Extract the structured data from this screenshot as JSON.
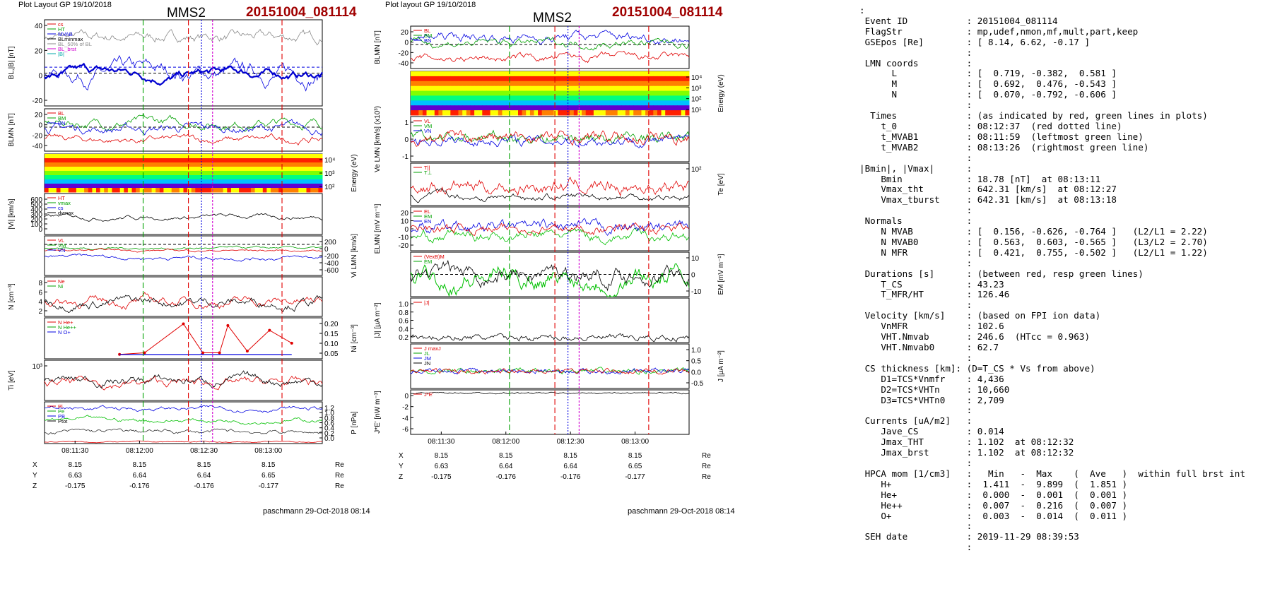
{
  "left": {
    "header": {
      "layout": "Plot Layout GP 19/10/2018",
      "sc": "MMS2",
      "event": "20151004_081114"
    },
    "footer": "paschmann 29-Oct-2018 08:14",
    "time_ticks": [
      "08:11:30",
      "08:12:00",
      "08:12:30",
      "08:13:00"
    ],
    "orbit": {
      "rows": [
        {
          "label": "X",
          "values": [
            "8.15",
            "8.15",
            "8.15",
            "8.15"
          ],
          "unit": "Re"
        },
        {
          "label": "Y",
          "values": [
            "6.63",
            "6.64",
            "6.64",
            "6.65"
          ],
          "unit": "Re"
        },
        {
          "label": "Z",
          "values": [
            "-0.175",
            "-0.176",
            "-0.176",
            "-0.177"
          ],
          "unit": "Re"
        }
      ]
    },
    "panels": [
      {
        "id": "bl",
        "ylabel": "BL,|B| [nT]",
        "ticks": [
          "40",
          "20",
          "0",
          "-20"
        ],
        "legend": [
          "cs",
          "HT",
          "MVAB",
          "BLminmax",
          "BL_50% of BL",
          "BL_brst",
          "|B|"
        ]
      },
      {
        "id": "blmn",
        "ylabel": "BLMN [nT]",
        "ticks": [
          "20",
          "0",
          "-20",
          "-40"
        ],
        "legend": [
          "BL",
          "BM",
          "BN"
        ]
      },
      {
        "id": "spec",
        "rlabel": "Energy (eV)",
        "rticks": [
          "10⁴",
          "10³",
          "10²"
        ]
      },
      {
        "id": "vi",
        "ylabel": "|Vi| [km/s]",
        "ticks": [
          "600",
          "500",
          "400",
          "300",
          "200",
          "100",
          "0"
        ],
        "legend": [
          "HT",
          "vmax",
          "cs",
          "dvmax"
        ]
      },
      {
        "id": "vilmn",
        "rlabel": "Vi LMN [km/s]",
        "rticks": [
          "200",
          "0",
          "-200",
          "-400",
          "-600"
        ],
        "legend": [
          "VL",
          "VM",
          "VN"
        ]
      },
      {
        "id": "n",
        "ylabel": "N [cm⁻³]",
        "ticks": [
          "8",
          "6",
          "4",
          "2"
        ],
        "legend": [
          "Ne",
          "Ni"
        ]
      },
      {
        "id": "nminor",
        "rlabel": "Ni [cm⁻³]",
        "rticks": [
          "0.20",
          "0.15",
          "0.10",
          "0.05"
        ],
        "legend": [
          "N He+",
          "N He++",
          "N O+"
        ]
      },
      {
        "id": "ti",
        "ylabel": "Ti [eV]",
        "ticks": [
          "10³"
        ]
      },
      {
        "id": "p",
        "rlabel": "P [nPa]",
        "rticks": [
          "1.2",
          "1.0",
          "0.8",
          "0.6",
          "0.4",
          "0.2",
          "0.0"
        ],
        "legend": [
          "Pi",
          "Pe",
          "PB",
          "Ptot"
        ]
      }
    ]
  },
  "middle": {
    "header": {
      "layout": "Plot layout GP 19/10/2018",
      "sc": "MMS2",
      "event": "20151004_081114"
    },
    "footer": "paschmann 29-Oct-2018 08:14",
    "time_ticks": [
      "08:11:30",
      "08:12:00",
      "08:12:30",
      "08:13:00"
    ],
    "orbit": {
      "rows": [
        {
          "label": "X",
          "values": [
            "8.15",
            "8.15",
            "8.15",
            "8.15"
          ],
          "unit": "Re"
        },
        {
          "label": "Y",
          "values": [
            "6.63",
            "6.64",
            "6.64",
            "6.65"
          ],
          "unit": "Re"
        },
        {
          "label": "Z",
          "values": [
            "-0.175",
            "-0.176",
            "-0.176",
            "-0.177"
          ],
          "unit": "Re"
        }
      ]
    },
    "panels": [
      {
        "id": "blmn",
        "ylabel": "BLMN [nT]",
        "ticks": [
          "20",
          "0",
          "-20",
          "-40"
        ],
        "legend": [
          "BL",
          "BM",
          "BN"
        ]
      },
      {
        "id": "spec",
        "rlabel": "Energy (eV)",
        "rticks": [
          "10⁴",
          "10³",
          "10²",
          "10¹"
        ]
      },
      {
        "id": "ve",
        "ylabel": "Ve LMN [km/s] (x10³)",
        "ticks": [
          "1",
          "0",
          "-1"
        ],
        "legend": [
          "VL",
          "VM",
          "VN"
        ]
      },
      {
        "id": "te",
        "rlabel": "Te [eV]",
        "rticks": [
          "10²"
        ],
        "legend": [
          "T||",
          "T⊥"
        ]
      },
      {
        "id": "e",
        "ylabel": "ELMN [mV m⁻¹]",
        "ticks": [
          "20",
          "10",
          "0",
          "-10",
          "-20"
        ],
        "legend": [
          "EL",
          "EM",
          "EN"
        ]
      },
      {
        "id": "em",
        "rlabel": "EM [mV m⁻¹]",
        "rticks": [
          "10",
          "0",
          "-10"
        ],
        "legend": [
          "(VexB)M",
          "EM"
        ]
      },
      {
        "id": "jmag",
        "ylabel": "|J| [μA m⁻²]",
        "ticks": [
          "1.0",
          "0.8",
          "0.6",
          "0.4",
          "0.2"
        ],
        "legend": [
          "|J|"
        ]
      },
      {
        "id": "j",
        "rlabel": "J [μA m⁻²]",
        "rticks": [
          "1.0",
          "0.5",
          "0.0",
          "-0.5"
        ],
        "legend": [
          "J maxJ",
          "JL",
          "JM",
          "JN"
        ]
      },
      {
        "id": "jdote",
        "ylabel": "J*E' [nW m⁻³]",
        "ticks": [
          "0",
          "-2",
          "-4",
          "-6"
        ],
        "legend": [
          "J*E'"
        ]
      }
    ]
  },
  "info": {
    "lines": [
      ":",
      " Event ID           : 20151004_081114",
      " FlagStr            : mp,udef,nmon,mf,mult,part,keep",
      " GSEpos [Re]        : [ 8.14, 6.62, -0.17 ]",
      "                    :",
      " LMN coords         :",
      "      L             : [  0.719, -0.382,  0.581 ]",
      "      M             : [  0.692,  0.476, -0.543 ]",
      "      N             : [  0.070, -0.792, -0.606 ]",
      "                    :",
      "  Times             : (as indicated by red, green lines in plots)",
      "    t_0             : 08:12:37  (red dotted line)",
      "    t_MVAB1         : 08:11:59  (leftmost green line)",
      "    t_MVAB2         : 08:13:26  (rightmost green line)",
      "                    :",
      "|Bmin|, |Vmax|      :",
      "    Bmin            : 18.78 [nT]  at 08:13:11",
      "    Vmax_tht        : 642.31 [km/s]  at 08:12:27",
      "    Vmax_tburst     : 642.31 [km/s]  at 08:13:18",
      "                    :",
      " Normals            :",
      "    N MVAB          : [  0.156, -0.626, -0.764 ]   (L2/L1 = 2.22)",
      "    N MVAB0         : [  0.563,  0.603, -0.565 ]   (L3/L2 = 2.70)",
      "    N MFR           : [  0.421,  0.755, -0.502 ]   (L2/L1 = 1.22)",
      "                    :",
      " Durations [s]      : (between red, resp green lines)",
      "    T_CS            : 43.23",
      "    T_MFR/HT        : 126.46",
      "                    :",
      " Velocity [km/s]    : (based on FPI ion data)",
      "    VnMFR           : 102.6",
      "    VHT.Nmvab       : 246.6  (HTcc = 0.963)",
      "    VHT.Nmvab0      : 62.7",
      "                    :",
      " CS thickness [km]: (D=T_CS * Vs from above)",
      "    D1=TCS*Vnmfr    : 4,436",
      "    D2=TCS*VHTn     : 10,660",
      "    D3=TCS*VHTn0    : 2,709",
      "                    :",
      " Currents [uA/m2]   :",
      "    Jave_CS         : 0.014",
      "    Jmax_THT        : 1.102  at 08:12:32",
      "    Jmax_brst       : 1.102  at 08:12:32",
      "                    :",
      " HPCA mom [1/cm3]   :   Min   -  Max    (  Ave   )  within full brst int",
      "    H+              :  1.411  -  9.899  (  1.851 )",
      "    He+             :  0.000  -  0.001  (  0.001 )",
      "    He++            :  0.007  -  0.216  (  0.007 )",
      "    O+              :  0.003  -  0.014  (  0.011 )",
      "                    :",
      " SEH date           : 2019-11-29 08:39:53",
      "                    :"
    ]
  },
  "chart_data": [
    {
      "type": "line",
      "title": "MMS2 20151004_081114",
      "x_ticks": [
        "08:11:30",
        "08:12:00",
        "08:12:30",
        "08:13:00"
      ],
      "panels": [
        "BL,|B| [nT]",
        "BLMN [nT]",
        "Energy (eV) spectrogram",
        "|Vi| [km/s]",
        "Vi LMN [km/s]",
        "N [cm⁻³]",
        "Ni [cm⁻³] (He+, He++, O+)",
        "Ti [eV]",
        "P [nPa]"
      ],
      "series": [
        {
          "name": "N He++",
          "values": [
            0.01,
            0.02,
            0.2,
            0.02,
            0.02,
            0.19,
            0.03,
            0.16,
            0.08
          ]
        }
      ]
    },
    {
      "type": "line",
      "title": "MMS2 20151004_081114",
      "x_ticks": [
        "08:11:30",
        "08:12:00",
        "08:12:30",
        "08:13:00"
      ],
      "panels": [
        "BLMN [nT]",
        "Energy (eV) spectrogram",
        "Ve LMN [km/s] x10³",
        "Te [eV]",
        "ELMN [mV m⁻¹]",
        "EM [mV m⁻¹]",
        "|J| [μA m⁻²]",
        "J [μA m⁻²]",
        "J*E' [nW m⁻³]"
      ]
    }
  ],
  "colors": {
    "event": "#a00000",
    "red": "#e00000",
    "green": "#00a000",
    "blue": "#0000e0",
    "magenta": "#d000d0"
  }
}
